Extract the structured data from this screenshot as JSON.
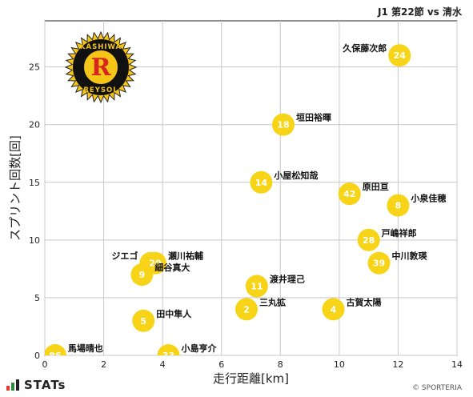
{
  "header": {
    "title": "J1 第22節 vs 清水"
  },
  "logo": {
    "text_top": "KASHIWA",
    "text_bottom": "REYSOL",
    "letter": "R"
  },
  "footer": {
    "brand": "STATs",
    "copyright": "© SPORTERIA"
  },
  "colors": {
    "point": "#f7d417",
    "logo_red": "#d7261e",
    "logo_yellow": "#f5c518"
  },
  "chart_data": {
    "type": "scatter",
    "xlabel": "走行距離[km]",
    "ylabel": "スプリント回数[回]",
    "xlim": [
      0,
      14
    ],
    "ylim": [
      0,
      29
    ],
    "xticks": [
      0,
      2,
      4,
      6,
      8,
      10,
      12,
      14
    ],
    "yticks": [
      0,
      5,
      10,
      15,
      20,
      25
    ],
    "grid": true,
    "points": [
      {
        "number": "24",
        "name": "久保藤次郎",
        "x": 12.05,
        "y": 26,
        "label_side": "left"
      },
      {
        "number": "18",
        "name": "垣田裕暉",
        "x": 8.1,
        "y": 20,
        "label_side": "right"
      },
      {
        "number": "14",
        "name": "小屋松知哉",
        "x": 7.35,
        "y": 15,
        "label_side": "right"
      },
      {
        "number": "42",
        "name": "原田亘",
        "x": 10.35,
        "y": 14,
        "label_side": "right"
      },
      {
        "number": "8",
        "name": "小泉佳穂",
        "x": 12.0,
        "y": 13,
        "label_side": "right"
      },
      {
        "number": "28",
        "name": "戸嶋祥郎",
        "x": 11.0,
        "y": 10,
        "label_side": "right"
      },
      {
        "number": "39",
        "name": "中川敦瑛",
        "x": 11.35,
        "y": 8,
        "label_side": "right"
      },
      {
        "number": "3",
        "name": "ジエゴ",
        "x": 3.6,
        "y": 8,
        "label_side": "left"
      },
      {
        "number": "20",
        "name": "瀬川祐輔",
        "x": 3.75,
        "y": 8,
        "label_side": "right"
      },
      {
        "number": "9",
        "name": "細谷真大",
        "x": 3.3,
        "y": 7,
        "label_side": "right"
      },
      {
        "number": "11",
        "name": "渡井理己",
        "x": 7.2,
        "y": 6,
        "label_side": "right"
      },
      {
        "number": "2",
        "name": "三丸拡",
        "x": 6.85,
        "y": 4,
        "label_side": "right"
      },
      {
        "number": "4",
        "name": "古賀太陽",
        "x": 9.8,
        "y": 4,
        "label_side": "right"
      },
      {
        "number": "5",
        "name": "田中隼人",
        "x": 3.35,
        "y": 3,
        "label_side": "right"
      },
      {
        "number": "86",
        "name": "馬場晴也",
        "x": 0.35,
        "y": 0,
        "label_side": "right"
      },
      {
        "number": "33",
        "name": "小島亨介",
        "x": 4.2,
        "y": 0,
        "label_side": "right"
      }
    ]
  }
}
